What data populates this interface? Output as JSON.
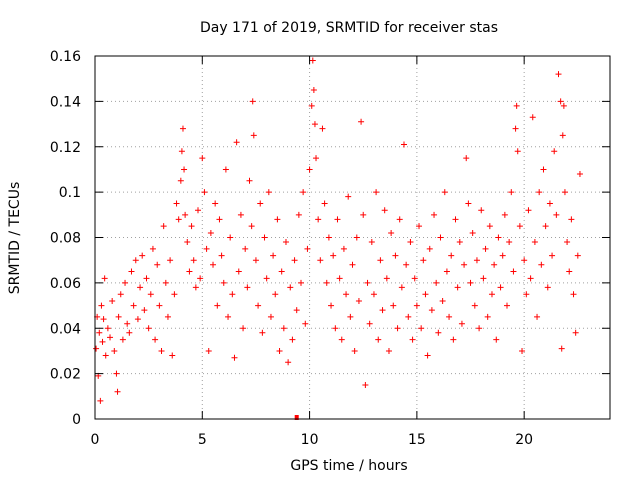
{
  "chart_data": {
    "type": "scatter",
    "title": "Day 171 of 2019, SRMTID for receiver stas",
    "xlabel": "GPS time / hours",
    "ylabel": "SRMTID / TECUs",
    "xlim": [
      0,
      24
    ],
    "ylim": [
      0,
      0.16
    ],
    "x_ticks": [
      0,
      5,
      10,
      15,
      20
    ],
    "x_tick_labels": [
      "0",
      "5",
      "10",
      "15",
      "20"
    ],
    "y_ticks": [
      0,
      0.02,
      0.04,
      0.06,
      0.08,
      0.1,
      0.12,
      0.14,
      0.16
    ],
    "y_tick_labels": [
      "0",
      "0.02",
      "0.04",
      "0.06",
      "0.08",
      "0.1",
      "0.12",
      "0.14",
      "0.16"
    ],
    "grid": true,
    "marker": "+",
    "series": [
      {
        "name": "SRMTID",
        "color": "#ff0000",
        "points": [
          [
            0.05,
            0.031
          ],
          [
            0.1,
            0.045
          ],
          [
            0.15,
            0.019
          ],
          [
            0.2,
            0.038
          ],
          [
            0.25,
            0.008
          ],
          [
            0.3,
            0.05
          ],
          [
            0.35,
            0.034
          ],
          [
            0.4,
            0.044
          ],
          [
            0.45,
            0.062
          ],
          [
            0.5,
            0.028
          ],
          [
            0.6,
            0.04
          ],
          [
            0.7,
            0.036
          ],
          [
            0.8,
            0.052
          ],
          [
            0.9,
            0.03
          ],
          [
            1.0,
            0.02
          ],
          [
            1.05,
            0.012
          ],
          [
            1.1,
            0.045
          ],
          [
            1.2,
            0.055
          ],
          [
            1.3,
            0.035
          ],
          [
            1.4,
            0.06
          ],
          [
            1.5,
            0.042
          ],
          [
            1.6,
            0.038
          ],
          [
            1.7,
            0.065
          ],
          [
            1.8,
            0.05
          ],
          [
            1.9,
            0.07
          ],
          [
            2.0,
            0.044
          ],
          [
            2.1,
            0.058
          ],
          [
            2.2,
            0.072
          ],
          [
            2.3,
            0.048
          ],
          [
            2.4,
            0.062
          ],
          [
            2.5,
            0.04
          ],
          [
            2.6,
            0.055
          ],
          [
            2.7,
            0.075
          ],
          [
            2.8,
            0.035
          ],
          [
            2.9,
            0.068
          ],
          [
            3.0,
            0.05
          ],
          [
            3.1,
            0.03
          ],
          [
            3.2,
            0.085
          ],
          [
            3.3,
            0.06
          ],
          [
            3.4,
            0.045
          ],
          [
            3.5,
            0.07
          ],
          [
            3.6,
            0.028
          ],
          [
            3.7,
            0.055
          ],
          [
            3.8,
            0.095
          ],
          [
            3.9,
            0.088
          ],
          [
            4.0,
            0.105
          ],
          [
            4.05,
            0.118
          ],
          [
            4.1,
            0.128
          ],
          [
            4.15,
            0.11
          ],
          [
            4.2,
            0.09
          ],
          [
            4.3,
            0.078
          ],
          [
            4.4,
            0.065
          ],
          [
            4.5,
            0.085
          ],
          [
            4.6,
            0.07
          ],
          [
            4.7,
            0.058
          ],
          [
            4.8,
            0.092
          ],
          [
            4.9,
            0.062
          ],
          [
            5.0,
            0.115
          ],
          [
            5.1,
            0.1
          ],
          [
            5.2,
            0.075
          ],
          [
            5.3,
            0.03
          ],
          [
            5.4,
            0.082
          ],
          [
            5.5,
            0.068
          ],
          [
            5.6,
            0.095
          ],
          [
            5.7,
            0.05
          ],
          [
            5.8,
            0.088
          ],
          [
            5.9,
            0.072
          ],
          [
            6.0,
            0.06
          ],
          [
            6.1,
            0.11
          ],
          [
            6.2,
            0.045
          ],
          [
            6.3,
            0.08
          ],
          [
            6.4,
            0.055
          ],
          [
            6.5,
            0.027
          ],
          [
            6.6,
            0.122
          ],
          [
            6.7,
            0.065
          ],
          [
            6.8,
            0.09
          ],
          [
            6.9,
            0.04
          ],
          [
            7.0,
            0.075
          ],
          [
            7.1,
            0.058
          ],
          [
            7.2,
            0.105
          ],
          [
            7.3,
            0.085
          ],
          [
            7.35,
            0.14
          ],
          [
            7.4,
            0.125
          ],
          [
            7.5,
            0.07
          ],
          [
            7.6,
            0.05
          ],
          [
            7.7,
            0.095
          ],
          [
            7.8,
            0.038
          ],
          [
            7.9,
            0.08
          ],
          [
            8.0,
            0.062
          ],
          [
            8.1,
            0.1
          ],
          [
            8.2,
            0.045
          ],
          [
            8.3,
            0.072
          ],
          [
            8.4,
            0.055
          ],
          [
            8.5,
            0.088
          ],
          [
            8.6,
            0.03
          ],
          [
            8.7,
            0.065
          ],
          [
            8.8,
            0.04
          ],
          [
            8.9,
            0.078
          ],
          [
            9.0,
            0.025
          ],
          [
            9.1,
            0.058
          ],
          [
            9.2,
            0.035
          ],
          [
            9.3,
            0.07
          ],
          [
            9.4,
            0.048
          ],
          [
            9.5,
            0.09
          ],
          [
            9.6,
            0.06
          ],
          [
            9.7,
            0.1
          ],
          [
            9.8,
            0.042
          ],
          [
            9.9,
            0.075
          ],
          [
            10.0,
            0.11
          ],
          [
            10.1,
            0.138
          ],
          [
            10.15,
            0.158
          ],
          [
            10.2,
            0.145
          ],
          [
            10.25,
            0.13
          ],
          [
            10.3,
            0.115
          ],
          [
            10.4,
            0.088
          ],
          [
            10.5,
            0.07
          ],
          [
            10.6,
            0.128
          ],
          [
            10.7,
            0.095
          ],
          [
            10.8,
            0.06
          ],
          [
            10.9,
            0.08
          ],
          [
            11.0,
            0.05
          ],
          [
            11.1,
            0.072
          ],
          [
            11.2,
            0.04
          ],
          [
            11.3,
            0.088
          ],
          [
            11.4,
            0.062
          ],
          [
            11.5,
            0.035
          ],
          [
            11.6,
            0.075
          ],
          [
            11.7,
            0.055
          ],
          [
            11.8,
            0.098
          ],
          [
            11.9,
            0.045
          ],
          [
            12.0,
            0.068
          ],
          [
            12.1,
            0.03
          ],
          [
            12.2,
            0.08
          ],
          [
            12.3,
            0.052
          ],
          [
            12.4,
            0.131
          ],
          [
            12.5,
            0.09
          ],
          [
            12.6,
            0.015
          ],
          [
            12.7,
            0.06
          ],
          [
            12.8,
            0.042
          ],
          [
            12.9,
            0.078
          ],
          [
            13.0,
            0.055
          ],
          [
            13.1,
            0.1
          ],
          [
            13.2,
            0.035
          ],
          [
            13.3,
            0.07
          ],
          [
            13.4,
            0.048
          ],
          [
            13.5,
            0.092
          ],
          [
            13.6,
            0.062
          ],
          [
            13.7,
            0.03
          ],
          [
            13.8,
            0.082
          ],
          [
            13.9,
            0.05
          ],
          [
            14.0,
            0.072
          ],
          [
            14.1,
            0.04
          ],
          [
            14.2,
            0.088
          ],
          [
            14.3,
            0.058
          ],
          [
            14.4,
            0.121
          ],
          [
            14.5,
            0.068
          ],
          [
            14.6,
            0.045
          ],
          [
            14.7,
            0.078
          ],
          [
            14.8,
            0.035
          ],
          [
            14.9,
            0.062
          ],
          [
            15.0,
            0.05
          ],
          [
            15.1,
            0.085
          ],
          [
            15.2,
            0.04
          ],
          [
            15.3,
            0.07
          ],
          [
            15.4,
            0.055
          ],
          [
            15.5,
            0.028
          ],
          [
            15.6,
            0.075
          ],
          [
            15.7,
            0.048
          ],
          [
            15.8,
            0.09
          ],
          [
            15.9,
            0.06
          ],
          [
            16.0,
            0.038
          ],
          [
            16.1,
            0.08
          ],
          [
            16.2,
            0.052
          ],
          [
            16.3,
            0.1
          ],
          [
            16.4,
            0.065
          ],
          [
            16.5,
            0.045
          ],
          [
            16.6,
            0.072
          ],
          [
            16.7,
            0.035
          ],
          [
            16.8,
            0.088
          ],
          [
            16.9,
            0.058
          ],
          [
            17.0,
            0.078
          ],
          [
            17.1,
            0.042
          ],
          [
            17.2,
            0.068
          ],
          [
            17.3,
            0.115
          ],
          [
            17.4,
            0.095
          ],
          [
            17.5,
            0.06
          ],
          [
            17.6,
            0.082
          ],
          [
            17.7,
            0.05
          ],
          [
            17.8,
            0.07
          ],
          [
            17.9,
            0.04
          ],
          [
            18.0,
            0.092
          ],
          [
            18.1,
            0.062
          ],
          [
            18.2,
            0.075
          ],
          [
            18.3,
            0.045
          ],
          [
            18.4,
            0.085
          ],
          [
            18.5,
            0.055
          ],
          [
            18.6,
            0.068
          ],
          [
            18.7,
            0.035
          ],
          [
            18.8,
            0.08
          ],
          [
            18.9,
            0.058
          ],
          [
            19.0,
            0.072
          ],
          [
            19.1,
            0.09
          ],
          [
            19.2,
            0.05
          ],
          [
            19.3,
            0.078
          ],
          [
            19.4,
            0.1
          ],
          [
            19.5,
            0.065
          ],
          [
            19.6,
            0.128
          ],
          [
            19.65,
            0.138
          ],
          [
            19.7,
            0.118
          ],
          [
            19.8,
            0.085
          ],
          [
            19.9,
            0.03
          ],
          [
            20.0,
            0.07
          ],
          [
            20.1,
            0.055
          ],
          [
            20.2,
            0.092
          ],
          [
            20.3,
            0.062
          ],
          [
            20.4,
            0.133
          ],
          [
            20.5,
            0.078
          ],
          [
            20.6,
            0.045
          ],
          [
            20.7,
            0.1
          ],
          [
            20.8,
            0.068
          ],
          [
            20.9,
            0.11
          ],
          [
            21.0,
            0.085
          ],
          [
            21.1,
            0.058
          ],
          [
            21.2,
            0.095
          ],
          [
            21.3,
            0.072
          ],
          [
            21.4,
            0.118
          ],
          [
            21.5,
            0.09
          ],
          [
            21.6,
            0.152
          ],
          [
            21.7,
            0.14
          ],
          [
            21.75,
            0.031
          ],
          [
            21.8,
            0.125
          ],
          [
            21.85,
            0.138
          ],
          [
            21.9,
            0.1
          ],
          [
            22.0,
            0.078
          ],
          [
            22.1,
            0.065
          ],
          [
            22.2,
            0.088
          ],
          [
            22.3,
            0.055
          ],
          [
            22.4,
            0.038
          ],
          [
            22.5,
            0.072
          ],
          [
            22.6,
            0.108
          ]
        ]
      }
    ],
    "outlier_marker": {
      "x": 9.4,
      "y": 0,
      "shape": "square"
    }
  }
}
